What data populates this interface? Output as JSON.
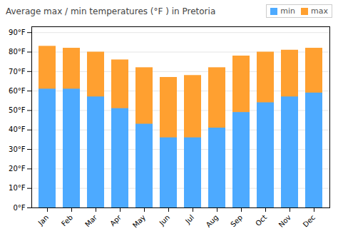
{
  "chart_data": {
    "type": "bar",
    "title": "Average max / min temperatures (°F ) in Pretoria",
    "categories": [
      "Jan",
      "Feb",
      "Mar",
      "Apr",
      "May",
      "Jun",
      "Jul",
      "Aug",
      "Sep",
      "Oct",
      "Nov",
      "Dec"
    ],
    "series": [
      {
        "name": "min",
        "color": "#4DAAFF",
        "values": [
          61,
          61,
          57,
          51,
          43,
          36,
          36,
          41,
          49,
          54,
          57,
          59
        ]
      },
      {
        "name": "max",
        "color": "#FFA030",
        "values": [
          83,
          82,
          80,
          76,
          72,
          67,
          68,
          72,
          78,
          80,
          81,
          82
        ]
      }
    ],
    "ylim": [
      0,
      93
    ],
    "yticks": [
      {
        "value": 0,
        "label": "0°F"
      },
      {
        "value": 10,
        "label": "10°F"
      },
      {
        "value": 20,
        "label": "20°F"
      },
      {
        "value": 30,
        "label": "30°F"
      },
      {
        "value": 40,
        "label": "40°F"
      },
      {
        "value": 50,
        "label": "50°F"
      },
      {
        "value": 60,
        "label": "60°F"
      },
      {
        "value": 70,
        "label": "70°F"
      },
      {
        "value": 80,
        "label": "80°F"
      },
      {
        "value": 90,
        "label": "90°F"
      }
    ],
    "grid": true,
    "legend": "upper right"
  }
}
